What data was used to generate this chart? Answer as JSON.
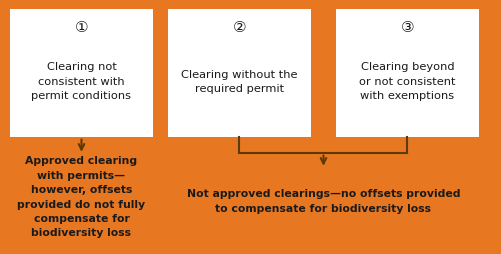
{
  "background_color": "#E87722",
  "box_color": "#FFFFFF",
  "text_color_dark": "#1A1A1A",
  "arrow_color": "#5C3A00",
  "fig_width": 5.01,
  "fig_height": 2.55,
  "dpi": 100,
  "boxes": [
    {
      "number": "①",
      "label": "Clearing not\nconsistent with\npermit conditions"
    },
    {
      "number": "②",
      "label": "Clearing without the\nrequired permit"
    },
    {
      "number": "③",
      "label": "Clearing beyond\nor not consistent\nwith exemptions"
    }
  ],
  "bottom_text_left": "Approved clearing\nwith permits—\nhowever, offsets\nprovided do not fully\ncompensate for\nbiodiversity loss",
  "bottom_text_right": "Not approved clearings—no offsets provided\nto compensate for biodiversity loss"
}
